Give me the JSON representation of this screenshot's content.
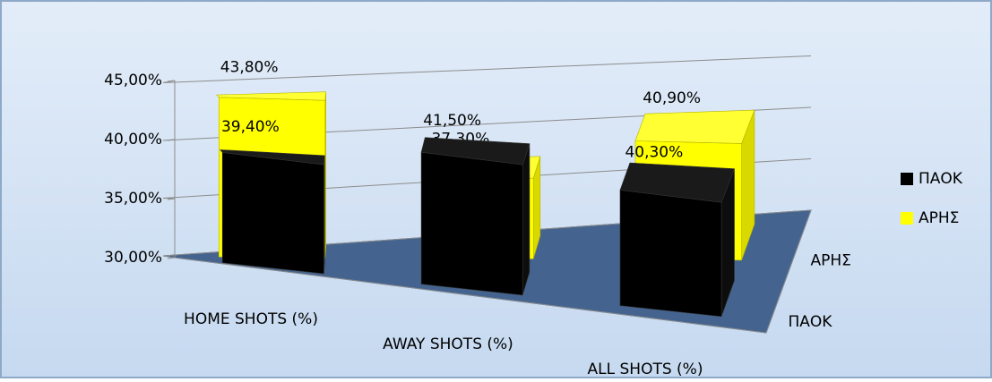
{
  "chart_data": {
    "type": "bar",
    "categories": [
      "HOME SHOTS (%)",
      "AWAY SHOTS (%)",
      "ALL SHOTS (%)"
    ],
    "series": [
      {
        "name": "ΠΑΟΚ",
        "color": "#000000",
        "values": [
          39.4,
          41.5,
          40.3
        ],
        "value_labels": [
          "39,40%",
          "41,50%",
          "40,30%"
        ]
      },
      {
        "name": "ΑΡΗΣ",
        "color": "#ffff00",
        "values": [
          43.8,
          37.3,
          40.9
        ],
        "value_labels": [
          "43,80%",
          "37,30%",
          "40,90%"
        ]
      }
    ],
    "ylim": [
      30,
      45
    ],
    "yticks": [
      {
        "value": 30,
        "label": "30,00%"
      },
      {
        "value": 35,
        "label": "35,00%"
      },
      {
        "value": 40,
        "label": "40,00%"
      },
      {
        "value": 45,
        "label": "45,00%"
      }
    ],
    "grid": true,
    "legend": "right"
  }
}
